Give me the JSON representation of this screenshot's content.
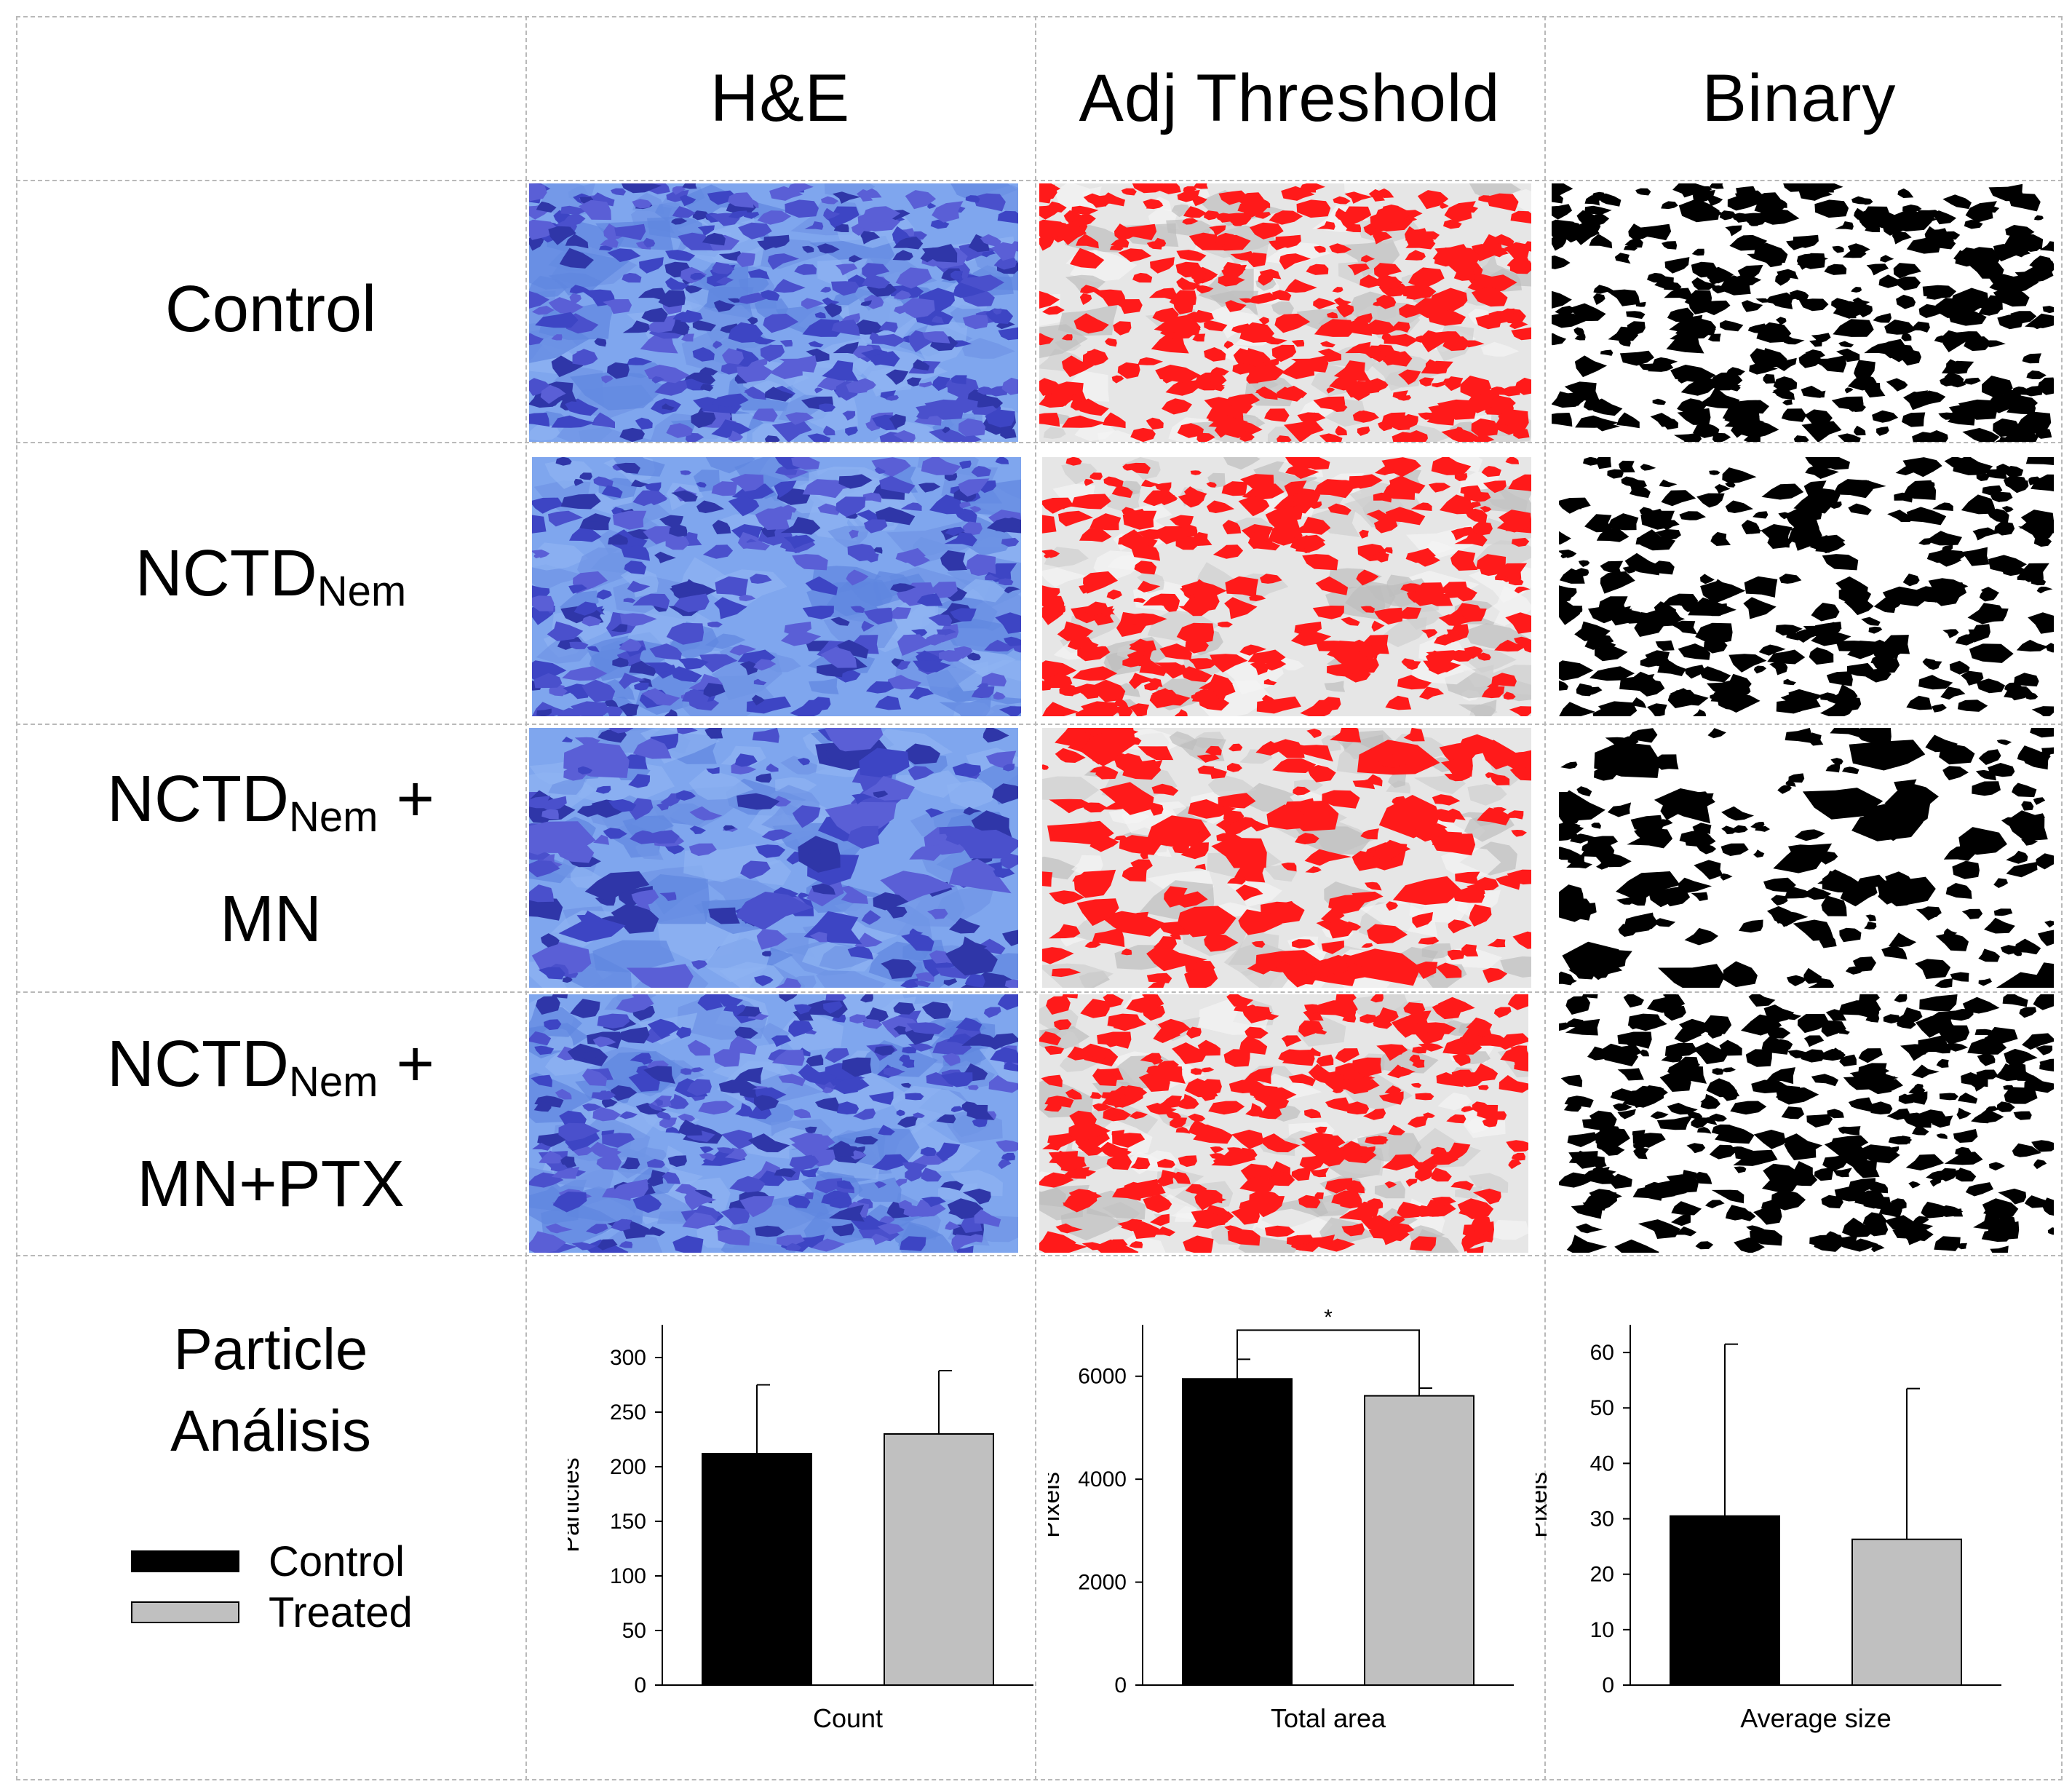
{
  "column_headers": [
    "H&E",
    "Adj Threshold",
    "Binary"
  ],
  "rows": [
    {
      "label": "Control",
      "sub": "",
      "suffix": "",
      "line2": ""
    },
    {
      "label": "NCTD",
      "sub": "Nem",
      "suffix": "",
      "line2": ""
    },
    {
      "label": "NCTD",
      "sub": "Nem",
      "suffix": " +",
      "line2": "MN"
    },
    {
      "label": "NCTD",
      "sub": "Nem",
      "suffix": " +",
      "line2": "MN+PTX"
    }
  ],
  "analysis_label": {
    "line1": "Particle",
    "line2": "Análisis"
  },
  "legend": [
    {
      "label": "Control",
      "color": "#000000"
    },
    {
      "label": "Treated",
      "color": "#c0c0c0"
    }
  ],
  "colors": {
    "he": "#4a5fd6",
    "threshold_red": "#ff1a1a",
    "binary_black": "#000000"
  },
  "chart_data": [
    {
      "type": "bar",
      "categories": [
        "Control",
        "Treated"
      ],
      "values": [
        212,
        230
      ],
      "errors": [
        63,
        58
      ],
      "xlabel": "Count",
      "ylabel": "Particles",
      "ylim": [
        0,
        330
      ],
      "yticks": [
        0,
        50,
        100,
        150,
        200,
        250,
        300
      ],
      "significance": ""
    },
    {
      "type": "bar",
      "categories": [
        "Control",
        "Treated"
      ],
      "values": [
        5950,
        5620
      ],
      "errors": [
        380,
        150
      ],
      "xlabel": "Total area",
      "ylabel": "Pixels",
      "ylim": [
        0,
        7000
      ],
      "yticks": [
        0,
        2000,
        4000,
        6000
      ],
      "significance": "*"
    },
    {
      "type": "bar",
      "categories": [
        "Control",
        "Treated"
      ],
      "values": [
        30.5,
        26.3
      ],
      "errors": [
        31,
        27.2
      ],
      "xlabel": "Average size",
      "ylabel": "Pixels",
      "ylim": [
        0,
        65
      ],
      "yticks": [
        0,
        10,
        20,
        30,
        40,
        50,
        60
      ],
      "significance": ""
    }
  ]
}
